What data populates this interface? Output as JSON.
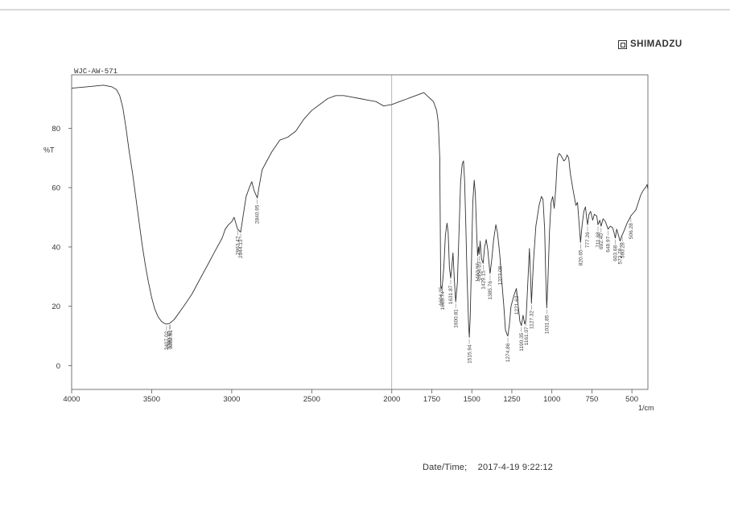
{
  "header": {
    "brand": "SHIMADZU",
    "sample_id": "WJC-AW-571"
  },
  "footer": {
    "datetime_label": "Date/Time;",
    "datetime_value": "2017-4-19 9:22:12"
  },
  "chart_data": {
    "type": "line",
    "title": "",
    "xlabel": "1/cm",
    "ylabel": "%T",
    "xlim": [
      4000,
      400
    ],
    "ylim": [
      -8,
      98
    ],
    "x_reversed": true,
    "grid": false,
    "x_ticks": [
      4000,
      3500,
      3000,
      2500,
      2000,
      1750,
      1500,
      1250,
      1000,
      750,
      500
    ],
    "x_tick_labels": [
      "4000",
      "3500",
      "3000",
      "2500",
      "2000",
      "1750",
      "1500",
      "1250",
      "1000",
      "750",
      "500"
    ],
    "y_ticks": [
      0,
      20,
      40,
      60,
      80
    ],
    "y_tick_labels": [
      "0",
      "20",
      "40",
      "60",
      "80"
    ],
    "series": [
      {
        "color": "#333333",
        "points": [
          [
            4000,
            93.5
          ],
          [
            3900,
            94
          ],
          [
            3800,
            94.5
          ],
          [
            3750,
            94
          ],
          [
            3720,
            93
          ],
          [
            3700,
            91
          ],
          [
            3680,
            87
          ],
          [
            3660,
            80
          ],
          [
            3640,
            72
          ],
          [
            3620,
            65
          ],
          [
            3600,
            57
          ],
          [
            3580,
            49
          ],
          [
            3560,
            41
          ],
          [
            3540,
            34
          ],
          [
            3520,
            28
          ],
          [
            3500,
            23
          ],
          [
            3480,
            19
          ],
          [
            3460,
            16.5
          ],
          [
            3440,
            15
          ],
          [
            3420,
            14.2
          ],
          [
            3407,
            14
          ],
          [
            3390,
            14.2
          ],
          [
            3382,
            14.5
          ],
          [
            3360,
            15.5
          ],
          [
            3340,
            17
          ],
          [
            3300,
            20
          ],
          [
            3250,
            24
          ],
          [
            3200,
            29
          ],
          [
            3150,
            34
          ],
          [
            3100,
            39
          ],
          [
            3060,
            43
          ],
          [
            3040,
            46
          ],
          [
            3020,
            47.5
          ],
          [
            3000,
            48.5
          ],
          [
            2985,
            50
          ],
          [
            2963,
            46
          ],
          [
            2944,
            45
          ],
          [
            2930,
            50
          ],
          [
            2910,
            57
          ],
          [
            2890,
            60
          ],
          [
            2875,
            62
          ],
          [
            2860,
            59
          ],
          [
            2840,
            56.5
          ],
          [
            2830,
            60
          ],
          [
            2810,
            66
          ],
          [
            2780,
            69
          ],
          [
            2750,
            72
          ],
          [
            2700,
            76
          ],
          [
            2650,
            77
          ],
          [
            2600,
            79
          ],
          [
            2550,
            83
          ],
          [
            2500,
            86
          ],
          [
            2450,
            88
          ],
          [
            2400,
            90
          ],
          [
            2350,
            91
          ],
          [
            2300,
            91
          ],
          [
            2250,
            90.5
          ],
          [
            2200,
            90
          ],
          [
            2150,
            89.5
          ],
          [
            2100,
            89
          ],
          [
            2050,
            87.5
          ],
          [
            2000,
            88
          ],
          [
            1950,
            89
          ],
          [
            1900,
            90
          ],
          [
            1850,
            91
          ],
          [
            1800,
            92
          ],
          [
            1780,
            91
          ],
          [
            1760,
            90
          ],
          [
            1740,
            89
          ],
          [
            1720,
            86
          ],
          [
            1710,
            82
          ],
          [
            1700,
            70
          ],
          [
            1698,
            55
          ],
          [
            1694,
            26.5
          ],
          [
            1690,
            26
          ],
          [
            1683.74,
            27.5
          ],
          [
            1675,
            33
          ],
          [
            1665,
            44
          ],
          [
            1655,
            48
          ],
          [
            1648,
            45
          ],
          [
            1640,
            33
          ],
          [
            1631.87,
            29.5
          ],
          [
            1624,
            34
          ],
          [
            1618,
            38
          ],
          [
            1610,
            30
          ],
          [
            1600.81,
            21.5
          ],
          [
            1590,
            28
          ],
          [
            1580,
            45
          ],
          [
            1570,
            62
          ],
          [
            1560,
            68
          ],
          [
            1552,
            69
          ],
          [
            1545,
            62
          ],
          [
            1538,
            48
          ],
          [
            1530,
            30
          ],
          [
            1520,
            14
          ],
          [
            1515.94,
            9.5
          ],
          [
            1510,
            16
          ],
          [
            1502,
            35
          ],
          [
            1494,
            55
          ],
          [
            1485,
            62.5
          ],
          [
            1478,
            58
          ],
          [
            1470,
            45
          ],
          [
            1463.97,
            37
          ],
          [
            1458,
            40
          ],
          [
            1454.23,
            37.5
          ],
          [
            1448,
            42
          ],
          [
            1440,
            36
          ],
          [
            1429.15,
            34.5
          ],
          [
            1420,
            40
          ],
          [
            1410,
            42.5
          ],
          [
            1400,
            39
          ],
          [
            1390,
            33
          ],
          [
            1385.76,
            31
          ],
          [
            1375,
            36
          ],
          [
            1365,
            42
          ],
          [
            1350,
            47.5
          ],
          [
            1340,
            45
          ],
          [
            1330,
            40
          ],
          [
            1323.08,
            36
          ],
          [
            1315,
            30
          ],
          [
            1300,
            20
          ],
          [
            1290,
            12
          ],
          [
            1280,
            10.5
          ],
          [
            1274.86,
            10
          ],
          [
            1265,
            14
          ],
          [
            1255,
            20
          ],
          [
            1245,
            22
          ],
          [
            1235,
            24
          ],
          [
            1221.62,
            26
          ],
          [
            1210,
            20
          ],
          [
            1200,
            15
          ],
          [
            1190.35,
            13.5
          ],
          [
            1180,
            17
          ],
          [
            1170,
            14
          ],
          [
            1161.07,
            15.5
          ],
          [
            1150,
            28
          ],
          [
            1140,
            39.5
          ],
          [
            1133,
            30
          ],
          [
            1127.32,
            21
          ],
          [
            1115,
            35
          ],
          [
            1100,
            47
          ],
          [
            1080,
            54
          ],
          [
            1065,
            57
          ],
          [
            1055,
            56
          ],
          [
            1045,
            46
          ],
          [
            1038,
            30
          ],
          [
            1031.85,
            19.5
          ],
          [
            1025,
            28
          ],
          [
            1015,
            45
          ],
          [
            1005,
            55
          ],
          [
            995,
            57
          ],
          [
            985,
            53
          ],
          [
            975,
            60
          ],
          [
            965,
            70
          ],
          [
            955,
            71.5
          ],
          [
            945,
            71
          ],
          [
            935,
            70
          ],
          [
            925,
            69
          ],
          [
            915,
            69.5
          ],
          [
            905,
            71
          ],
          [
            895,
            70
          ],
          [
            885,
            65
          ],
          [
            870,
            60
          ],
          [
            860,
            57
          ],
          [
            850,
            54
          ],
          [
            840,
            55
          ],
          [
            830,
            48
          ],
          [
            820.65,
            41.5
          ],
          [
            812,
            47
          ],
          [
            800,
            52
          ],
          [
            790,
            53.5
          ],
          [
            783,
            50
          ],
          [
            777.26,
            47.5
          ],
          [
            768,
            51
          ],
          [
            758,
            52
          ],
          [
            745,
            49
          ],
          [
            735,
            51
          ],
          [
            720,
            50.5
          ],
          [
            711.68,
            47.5
          ],
          [
            700,
            49
          ],
          [
            692.4,
            47
          ],
          [
            680,
            49.5
          ],
          [
            665,
            48.5
          ],
          [
            648.97,
            46
          ],
          [
            635,
            47
          ],
          [
            620,
            46.5
          ],
          [
            610,
            44.5
          ],
          [
            603.68,
            43
          ],
          [
            595,
            46
          ],
          [
            584,
            44
          ],
          [
            573.79,
            42
          ],
          [
            562,
            44
          ],
          [
            560.28,
            44
          ],
          [
            545,
            46
          ],
          [
            530,
            48
          ],
          [
            515,
            49.5
          ],
          [
            506.28,
            50.5
          ],
          [
            490,
            51.5
          ],
          [
            475,
            52.5
          ],
          [
            460,
            55
          ],
          [
            445,
            57.5
          ],
          [
            430,
            59
          ],
          [
            415,
            60
          ],
          [
            405,
            61
          ],
          [
            400,
            59.5
          ]
        ]
      }
    ],
    "peak_labels": [
      {
        "x": 3407.02,
        "text": "3407.02"
      },
      {
        "x": 3390.63,
        "text": "3390.63"
      },
      {
        "x": 3382.91,
        "text": "3382.91"
      },
      {
        "x": 2963.42,
        "text": "2963.42"
      },
      {
        "x": 2944.13,
        "text": "2944.13"
      },
      {
        "x": 2840.95,
        "text": "2840.95"
      },
      {
        "x": 1694.35,
        "text": "1694.35"
      },
      {
        "x": 1683.74,
        "text": "1683.74"
      },
      {
        "x": 1631.87,
        "text": "1631.87"
      },
      {
        "x": 1600.81,
        "text": "1600.81"
      },
      {
        "x": 1515.94,
        "text": "1515.94"
      },
      {
        "x": 1463.97,
        "text": "1463.97"
      },
      {
        "x": 1454.23,
        "text": "1454.23"
      },
      {
        "x": 1429.15,
        "text": "1429.15"
      },
      {
        "x": 1385.76,
        "text": "1385.76"
      },
      {
        "x": 1323.08,
        "text": "1323.08"
      },
      {
        "x": 1274.86,
        "text": "1274.86"
      },
      {
        "x": 1221.62,
        "text": "1221.62"
      },
      {
        "x": 1190.35,
        "text": "1190.35"
      },
      {
        "x": 1161.07,
        "text": "1161.07"
      },
      {
        "x": 1127.32,
        "text": "1127.32"
      },
      {
        "x": 1031.85,
        "text": "1031.85"
      },
      {
        "x": 820.65,
        "text": "820.65"
      },
      {
        "x": 777.26,
        "text": "777.26"
      },
      {
        "x": 711.68,
        "text": "711.68"
      },
      {
        "x": 692.4,
        "text": "692.40"
      },
      {
        "x": 648.97,
        "text": "648.97"
      },
      {
        "x": 603.68,
        "text": "603.68"
      },
      {
        "x": 573.79,
        "text": "573.79"
      },
      {
        "x": 560.28,
        "text": "560.28"
      },
      {
        "x": 506.28,
        "text": "506.28"
      }
    ]
  }
}
